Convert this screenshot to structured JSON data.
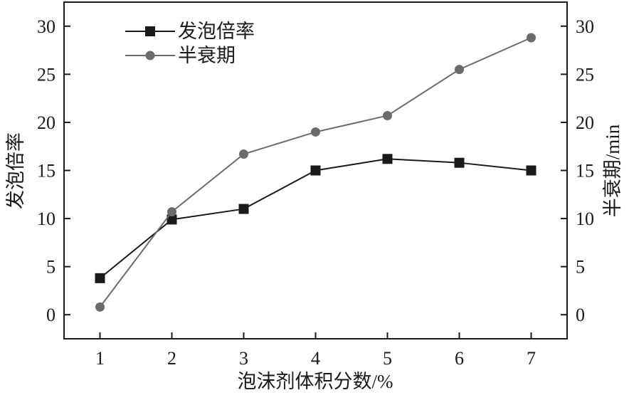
{
  "chart_data": {
    "type": "line",
    "title": "",
    "xlabel": "泡沫剂体积分数/%",
    "ylabel_left": "发泡倍率",
    "ylabel_right": "半衰期/min",
    "x": [
      1,
      2,
      3,
      4,
      5,
      6,
      7
    ],
    "xlim": [
      0.5,
      7.5
    ],
    "ylim": [
      -2.5,
      32.5
    ],
    "x_ticks": [
      "1",
      "2",
      "3",
      "4",
      "5",
      "6",
      "7"
    ],
    "y_ticks": [
      "0",
      "5",
      "10",
      "15",
      "20",
      "25",
      "30"
    ],
    "grid": false,
    "legend_position": "top-left",
    "series": [
      {
        "name": "发泡倍率",
        "axis": "left",
        "marker": "square",
        "color": "#1a1a1a",
        "values": [
          3.8,
          9.9,
          11.0,
          15.0,
          16.2,
          15.8,
          15.0
        ]
      },
      {
        "name": "半衰期",
        "axis": "right",
        "marker": "circle",
        "color": "#6b6b6b",
        "values": [
          0.8,
          10.7,
          16.7,
          19.0,
          20.7,
          25.5,
          28.8
        ]
      }
    ]
  }
}
